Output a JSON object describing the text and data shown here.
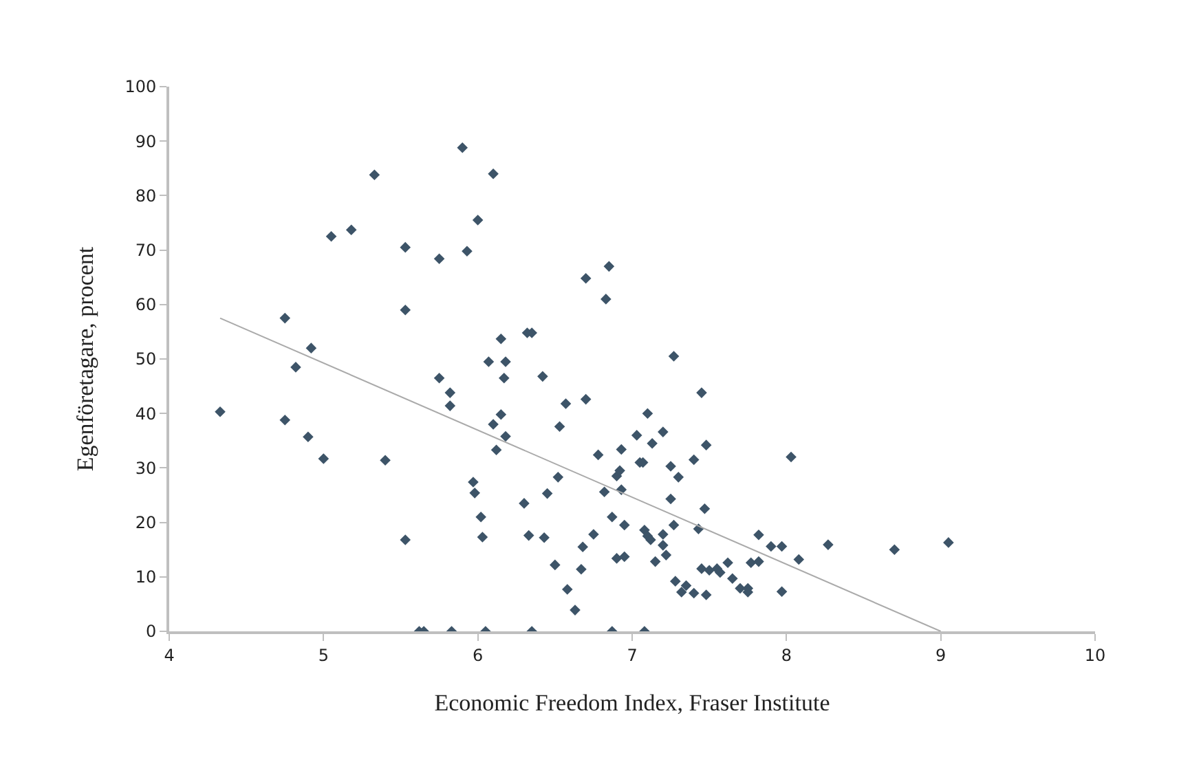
{
  "chart_data": {
    "type": "scatter",
    "xlabel": "Economic Freedom Index, Fraser Institute",
    "ylabel": "Egenföretagare, procent",
    "xlim": [
      4,
      10
    ],
    "xticks": [
      4,
      5,
      6,
      7,
      8,
      9,
      10
    ],
    "ylim": [
      0,
      100
    ],
    "yticks": [
      0,
      10,
      20,
      30,
      40,
      50,
      60,
      70,
      80,
      90,
      100
    ],
    "marker": "diamond",
    "series": [
      {
        "color": "#3d5468",
        "x": [
          4.33,
          4.75,
          4.75,
          4.82,
          4.9,
          4.92,
          5.0,
          5.05,
          5.18,
          5.33,
          5.4,
          5.53,
          5.53,
          5.53,
          5.62,
          5.65,
          5.75,
          5.75,
          5.82,
          5.82,
          5.83,
          5.9,
          5.93,
          5.97,
          5.98,
          6.0,
          6.02,
          6.03,
          6.05,
          6.07,
          6.1,
          6.1,
          6.12,
          6.15,
          6.15,
          6.17,
          6.18,
          6.18,
          6.3,
          6.32,
          6.35,
          6.33,
          6.35,
          6.42,
          6.45,
          6.43,
          6.5,
          6.52,
          6.53,
          6.57,
          6.58,
          6.63,
          6.67,
          6.68,
          6.7,
          6.7,
          6.75,
          6.78,
          6.82,
          6.83,
          6.85,
          6.87,
          6.87,
          6.9,
          6.9,
          6.92,
          6.93,
          6.93,
          6.95,
          6.95,
          7.03,
          7.05,
          7.07,
          7.08,
          7.08,
          7.1,
          7.1,
          7.12,
          7.13,
          7.15,
          7.2,
          7.2,
          7.2,
          7.22,
          7.25,
          7.25,
          7.27,
          7.27,
          7.3,
          7.28,
          7.32,
          7.35,
          7.4,
          7.4,
          7.43,
          7.45,
          7.45,
          7.47,
          7.48,
          7.48,
          7.5,
          7.55,
          7.57,
          7.62,
          7.65,
          7.7,
          7.75,
          7.77,
          7.75,
          7.82,
          7.82,
          7.9,
          7.97,
          7.97,
          8.03,
          8.08,
          8.27,
          8.7,
          9.05
        ],
        "values": [
          40.3,
          57.5,
          38.8,
          48.5,
          35.7,
          52,
          31.7,
          72.5,
          73.7,
          83.8,
          31.4,
          70.5,
          59,
          16.8,
          0,
          0,
          68.4,
          46.5,
          43.8,
          41.4,
          0,
          88.8,
          69.8,
          27.4,
          25.4,
          75.5,
          21,
          17.3,
          0,
          49.5,
          84,
          38,
          33.3,
          53.7,
          39.8,
          46.5,
          49.5,
          35.8,
          23.5,
          54.8,
          54.8,
          17.6,
          0,
          46.8,
          25.3,
          17.2,
          12.2,
          28.3,
          37.6,
          41.8,
          7.7,
          3.9,
          11.4,
          15.5,
          42.6,
          64.8,
          17.8,
          32.4,
          25.6,
          61,
          67,
          21,
          0,
          28.5,
          13.4,
          29.5,
          26,
          33.4,
          19.5,
          13.7,
          36,
          31,
          31,
          18.6,
          0,
          40,
          17.5,
          16.8,
          34.5,
          12.8,
          36.6,
          17.8,
          15.8,
          14,
          30.3,
          24.3,
          19.5,
          50.5,
          28.3,
          9.2,
          7.2,
          8.4,
          31.5,
          7,
          18.8,
          43.8,
          11.5,
          22.5,
          6.7,
          34.2,
          11.2,
          11.5,
          10.8,
          12.6,
          9.7,
          7.9,
          7.9,
          12.6,
          7.2,
          17.7,
          12.8,
          15.6,
          15.6,
          7.3,
          32,
          13.2,
          15.9,
          15,
          16.3
        ]
      },
      {
        "type": "line",
        "color": "#aaaaaa",
        "marker": "none",
        "x": [
          4.33,
          9.0
        ],
        "values": [
          57.5,
          0
        ]
      }
    ]
  }
}
